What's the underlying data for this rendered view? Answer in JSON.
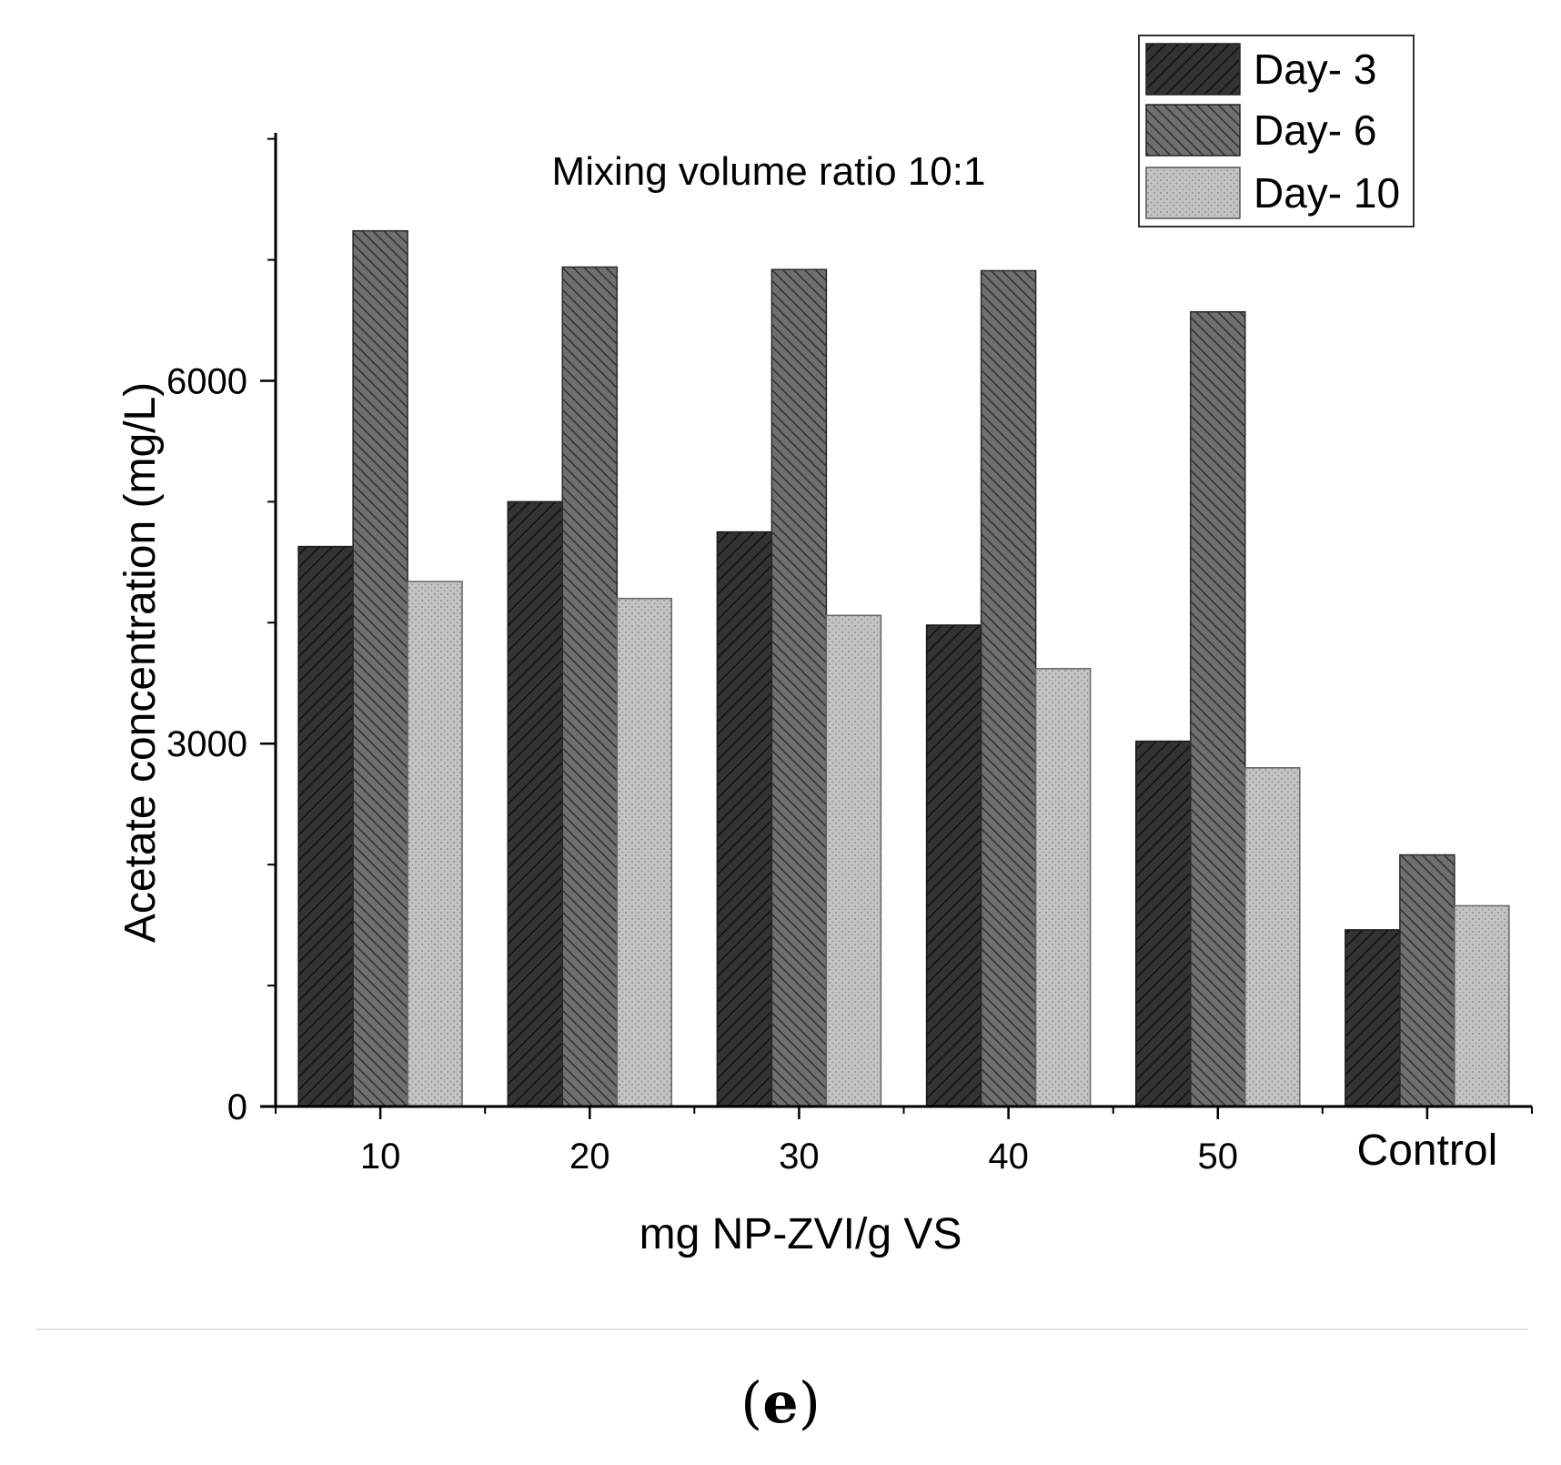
{
  "chart_data": {
    "type": "bar",
    "title": "Mixing volume ratio 10:1",
    "xlabel": "mg NP-ZVI/g VS",
    "ylabel": "Acetate concentration (mg/L)",
    "categories": [
      "10",
      "20",
      "30",
      "40",
      "50",
      "Control"
    ],
    "yticks": [
      0,
      3000,
      6000
    ],
    "ylim": [
      0,
      8050
    ],
    "grid": false,
    "legend_position": "top-right",
    "series": [
      {
        "name": "Day- 3",
        "pattern": "forward-diagonal",
        "color": "#333333",
        "values": [
          4630,
          5000,
          4750,
          3980,
          3020,
          1460
        ]
      },
      {
        "name": "Day- 6",
        "pattern": "back-diagonal",
        "color": "#6f6f6f",
        "values": [
          7240,
          6940,
          6920,
          6910,
          6570,
          2080
        ]
      },
      {
        "name": "Day- 10",
        "pattern": "dots",
        "color": "#bcbcbc",
        "values": [
          4340,
          4200,
          4060,
          3620,
          2800,
          1660
        ]
      }
    ]
  },
  "caption": {
    "open": "(",
    "letter": "e",
    "close": ")"
  }
}
